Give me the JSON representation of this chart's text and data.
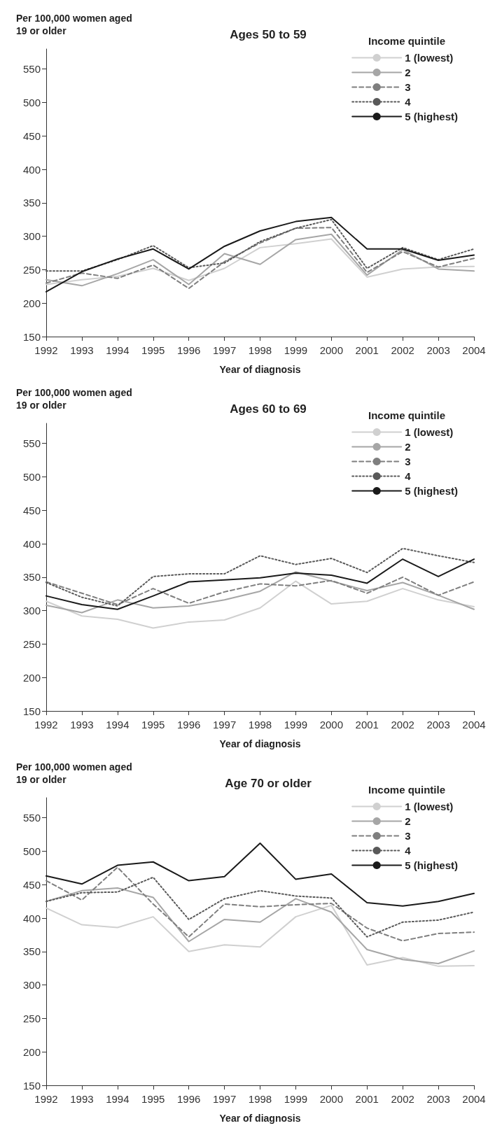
{
  "chart_data": [
    {
      "type": "line",
      "title": "Ages 50 to 59",
      "ylabel": "Per 100,000 women aged 19 or older",
      "xlabel": "Year of diagnosis",
      "legend_title": "Income quintile",
      "legend": "top right",
      "grid": false,
      "marker": "none",
      "categories": [
        "1992",
        "1993",
        "1994",
        "1995",
        "1996",
        "1997",
        "1998",
        "1999",
        "2000",
        "2001",
        "2002",
        "2003",
        "2004"
      ],
      "ylim": [
        150,
        580
      ],
      "yticks": [
        150,
        200,
        250,
        300,
        350,
        400,
        450,
        500,
        550
      ],
      "series": [
        {
          "name": "1 (lowest)",
          "color": "#d0d0d0",
          "line_style": "solid",
          "values": [
            228,
            235,
            240,
            252,
            234,
            252,
            283,
            289,
            296,
            239,
            251,
            254,
            255
          ]
        },
        {
          "name": "2",
          "color": "#a6a6a6",
          "line_style": "solid",
          "values": [
            235,
            226,
            244,
            265,
            228,
            274,
            258,
            295,
            303,
            242,
            280,
            251,
            248
          ]
        },
        {
          "name": "3",
          "color": "#7f7f7f",
          "line_style": "dashed",
          "values": [
            230,
            245,
            237,
            257,
            222,
            262,
            290,
            312,
            313,
            246,
            277,
            254,
            267
          ]
        },
        {
          "name": "4",
          "color": "#595959",
          "line_style": "dotted",
          "values": [
            248,
            248,
            265,
            286,
            253,
            260,
            292,
            312,
            325,
            252,
            283,
            265,
            281
          ]
        },
        {
          "name": "5 (highest)",
          "color": "#1a1a1a",
          "line_style": "solid",
          "values": [
            217,
            247,
            266,
            281,
            251,
            285,
            308,
            322,
            328,
            281,
            281,
            264,
            272
          ]
        }
      ]
    },
    {
      "type": "line",
      "title": "Ages 60 to 69",
      "ylabel": "Per 100,000 women aged 19 or older",
      "xlabel": "Year of diagnosis",
      "legend_title": "Income quintile",
      "legend": "top right",
      "grid": false,
      "marker": "none",
      "categories": [
        "1992",
        "1993",
        "1994",
        "1995",
        "1996",
        "1997",
        "1998",
        "1999",
        "2000",
        "2001",
        "2002",
        "2003",
        "2004"
      ],
      "ylim": [
        150,
        580
      ],
      "yticks": [
        150,
        200,
        250,
        300,
        350,
        400,
        450,
        500,
        550
      ],
      "series": [
        {
          "name": "1 (lowest)",
          "color": "#d0d0d0",
          "line_style": "solid",
          "values": [
            314,
            292,
            287,
            274,
            283,
            286,
            304,
            344,
            310,
            314,
            333,
            316,
            306
          ]
        },
        {
          "name": "2",
          "color": "#a6a6a6",
          "line_style": "solid",
          "values": [
            308,
            297,
            316,
            304,
            307,
            316,
            329,
            358,
            344,
            330,
            342,
            323,
            302
          ]
        },
        {
          "name": "3",
          "color": "#7f7f7f",
          "line_style": "dashed",
          "values": [
            343,
            326,
            309,
            333,
            311,
            328,
            340,
            337,
            345,
            326,
            350,
            323,
            343
          ]
        },
        {
          "name": "4",
          "color": "#595959",
          "line_style": "dotted",
          "values": [
            342,
            320,
            307,
            351,
            355,
            355,
            382,
            369,
            378,
            357,
            393,
            382,
            372
          ]
        },
        {
          "name": "5 (highest)",
          "color": "#1a1a1a",
          "line_style": "solid",
          "values": [
            322,
            309,
            302,
            322,
            343,
            346,
            349,
            356,
            353,
            341,
            377,
            351,
            377
          ]
        }
      ]
    },
    {
      "type": "line",
      "title": "Age 70 or older",
      "ylabel": "Per 100,000 women aged 19 or older",
      "xlabel": "Year of diagnosis",
      "legend_title": "Income quintile",
      "legend": "top right",
      "grid": false,
      "marker": "none",
      "categories": [
        "1992",
        "1993",
        "1994",
        "1995",
        "1996",
        "1997",
        "1998",
        "1999",
        "2000",
        "2001",
        "2002",
        "2003",
        "2004"
      ],
      "ylim": [
        150,
        580
      ],
      "yticks": [
        150,
        200,
        250,
        300,
        350,
        400,
        450,
        500,
        550
      ],
      "series": [
        {
          "name": "1 (lowest)",
          "color": "#d0d0d0",
          "line_style": "solid",
          "values": [
            415,
            390,
            386,
            402,
            350,
            360,
            357,
            402,
            419,
            330,
            341,
            328,
            329
          ]
        },
        {
          "name": "2",
          "color": "#a6a6a6",
          "line_style": "solid",
          "values": [
            425,
            441,
            445,
            431,
            365,
            398,
            394,
            429,
            409,
            353,
            338,
            332,
            351
          ]
        },
        {
          "name": "3",
          "color": "#7f7f7f",
          "line_style": "dashed",
          "values": [
            456,
            427,
            476,
            421,
            372,
            421,
            417,
            420,
            422,
            385,
            366,
            377,
            379
          ]
        },
        {
          "name": "4",
          "color": "#595959",
          "line_style": "dotted",
          "values": [
            425,
            438,
            439,
            461,
            398,
            429,
            441,
            433,
            430,
            372,
            394,
            397,
            409
          ]
        },
        {
          "name": "5 (highest)",
          "color": "#1a1a1a",
          "line_style": "solid",
          "values": [
            463,
            451,
            479,
            484,
            456,
            462,
            512,
            458,
            466,
            423,
            418,
            425,
            437
          ]
        }
      ]
    }
  ]
}
